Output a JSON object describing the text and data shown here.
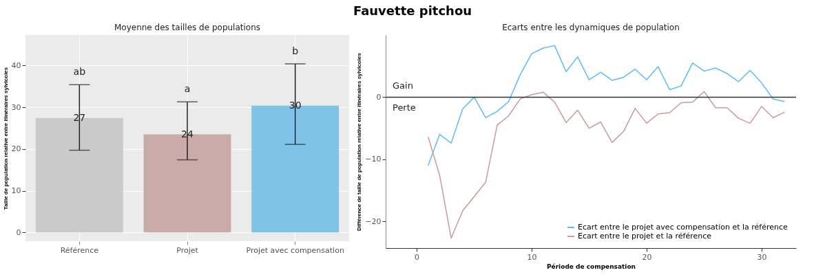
{
  "chart_data": [
    {
      "type": "bar",
      "title": "Moyenne des tailles de populations",
      "ylabel": "Taille de population relative entre itinéraires sylvicoles",
      "categories": [
        "Référence",
        "Projet",
        "Projet avec compensation"
      ],
      "values": [
        27.4,
        23.5,
        30.4
      ],
      "colors": [
        "#c6c6c6",
        "#c8a3a3",
        "#74bfe8"
      ],
      "errors": [
        [
          19.7,
          35.4
        ],
        [
          17.4,
          31.3
        ],
        [
          21.1,
          40.4
        ]
      ],
      "value_labels": [
        "27",
        "24",
        "30"
      ],
      "ylim": [
        -2.1,
        47.3
      ],
      "yticks": [
        0,
        10,
        20,
        30,
        40
      ],
      "grid": true,
      "annotations": [
        "Fauvette pitchou",
        "ab",
        "a",
        "b"
      ]
    },
    {
      "type": "line",
      "title": "Ecarts entre les dynamiques de population",
      "xlabel": "Période de compensation",
      "ylabel": "Différence de taille de population relative entre itinéraires sylvicoles",
      "x": [
        1,
        2,
        3,
        4,
        5,
        6,
        7,
        8,
        9,
        10,
        11,
        12,
        13,
        14,
        15,
        16,
        17,
        18,
        19,
        20,
        21,
        22,
        23,
        24,
        25,
        26,
        27,
        28,
        29,
        30,
        31,
        32
      ],
      "series": [
        {
          "name": "Ecart entre le projet avec compensation et la référence",
          "color": "#5bbcf0",
          "values": [
            -11.0,
            -6.0,
            -7.4,
            -1.9,
            0,
            -3.3,
            -2.3,
            -0.7,
            3.6,
            7.0,
            7.9,
            8.3,
            4.1,
            6.5,
            2.8,
            4.0,
            2.7,
            3.2,
            4.5,
            2.8,
            4.9,
            1.2,
            1.8,
            5.5,
            4.2,
            4.7,
            3.8,
            2.5,
            4.3,
            2.3,
            -0.3,
            -0.7
          ]
        },
        {
          "name": "Ecart entre le projet et la référence",
          "color": "#c99a9a",
          "values": [
            -6.4,
            -12.6,
            -22.7,
            -18.3,
            -16.0,
            -13.7,
            -4.5,
            -3.0,
            -0.3,
            0.4,
            0.8,
            -0.8,
            -4.1,
            -2.1,
            -5.0,
            -4.0,
            -7.3,
            -5.5,
            -1.8,
            -4.2,
            -2.7,
            -2.5,
            -0.9,
            -0.8,
            0.9,
            -1.7,
            -1.7,
            -3.4,
            -4.2,
            -1.5,
            -3.3,
            -2.4
          ]
        }
      ],
      "xlim": [
        -2.7,
        33
      ],
      "xticks": [
        0,
        10,
        20,
        30
      ],
      "ylim": [
        -24.3,
        10
      ],
      "yticks": [
        -20,
        -10,
        0
      ],
      "ref_lines": [
        {
          "axis": "y",
          "value": 0,
          "color": "#333333"
        }
      ],
      "legend": "bottom right",
      "annotations": [
        "Gain",
        "Perte"
      ]
    }
  ]
}
